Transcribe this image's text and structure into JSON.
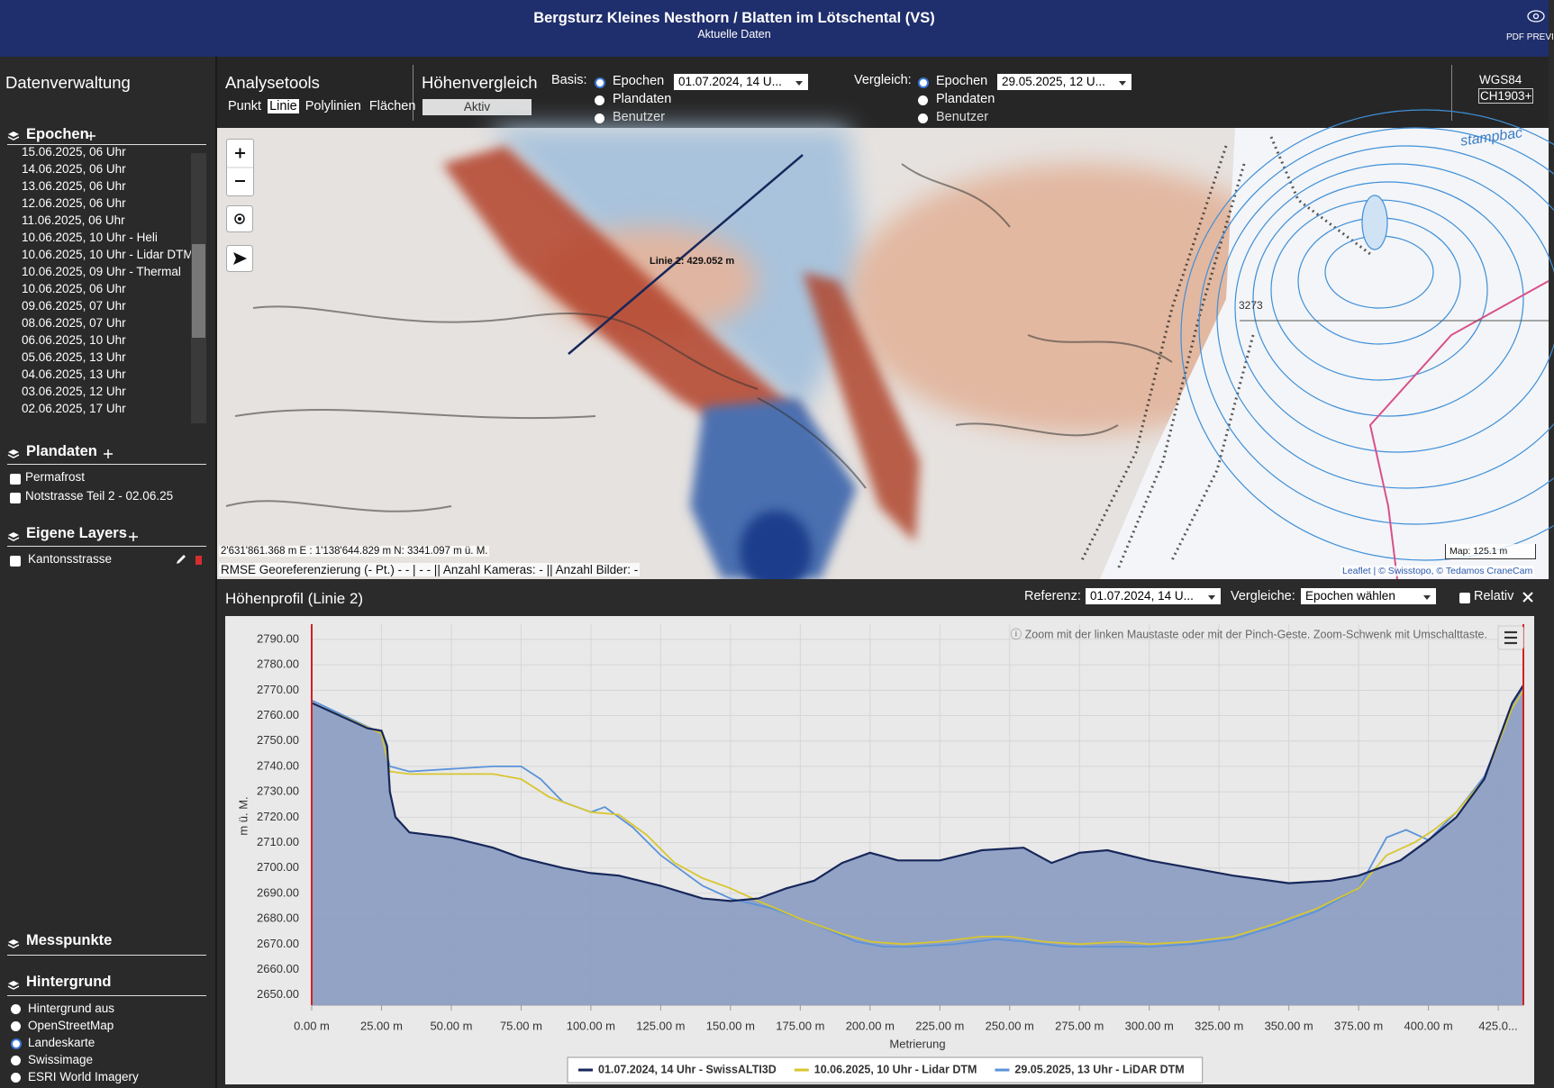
{
  "header": {
    "title": "Bergsturz Kleines Nesthorn / Blatten im Lötschental (VS)",
    "subtitle": "Aktuelle Daten",
    "pdf": "PDF PREVI"
  },
  "sidebar": {
    "title": "Datenverwaltung",
    "epochen": {
      "label": "Epochen",
      "items": [
        "15.06.2025, 06 Uhr",
        "14.06.2025, 06 Uhr",
        "13.06.2025, 06 Uhr",
        "12.06.2025, 06 Uhr",
        "11.06.2025, 06 Uhr",
        "10.06.2025, 10 Uhr - Heli",
        "10.06.2025, 10 Uhr - Lidar DTM",
        "10.06.2025, 09 Uhr - Thermal",
        "10.06.2025, 06 Uhr",
        "09.06.2025, 07 Uhr",
        "08.06.2025, 07 Uhr",
        "06.06.2025, 10 Uhr",
        "05.06.2025, 13 Uhr",
        "04.06.2025, 13 Uhr",
        "03.06.2025, 12 Uhr",
        "02.06.2025, 17 Uhr"
      ]
    },
    "plandaten": {
      "label": "Plandaten",
      "items": [
        "Permafrost",
        "Notstrasse Teil 2 - 02.06.25"
      ]
    },
    "eigene_layers": {
      "label": "Eigene Layers",
      "items": [
        "Kantonsstrasse"
      ]
    },
    "messpunkte": {
      "label": "Messpunkte"
    },
    "hintergrund": {
      "label": "Hintergrund",
      "items": [
        "Hintergrund aus",
        "OpenStreetMap",
        "Landeskarte",
        "Swissimage",
        "ESRI World Imagery"
      ],
      "selected": 2
    }
  },
  "toolbar": {
    "analysetools": {
      "title": "Analysetools",
      "tools": [
        "Punkt",
        "Linie",
        "Polylinien",
        "Flächen"
      ],
      "active": 1
    },
    "hoehenvergleich": {
      "title": "Höhenvergleich",
      "button": "Aktiv"
    },
    "basis": {
      "label": "Basis:",
      "options": [
        "Epochen",
        "Plandaten",
        "Benutzer"
      ],
      "selected": 0,
      "select": "01.07.2024, 14 U..."
    },
    "vergleich": {
      "label": "Vergleich:",
      "options": [
        "Epochen",
        "Plandaten",
        "Benutzer"
      ],
      "selected": 0,
      "select": "29.05.2025, 12 U..."
    },
    "crs": [
      "WGS84",
      "CH1903+"
    ]
  },
  "map": {
    "line_label": "Linie 2: 429.052 m",
    "coords": "2'631'861.368 m E : 1'138'644.829 m N: 3341.097 m ü. M.",
    "rmse": "RMSE Georeferenzierung (- Pt.) - - | - - || Anzahl Kameras: - || Anzahl Bilder: -",
    "scale": "Map: 125.1 m",
    "attribution": "Leaflet | © Swisstopo, © Tedamos CraneCam",
    "contour_label": "3273",
    "place_label": "stampbac"
  },
  "profile": {
    "title": "Höhenprofil (Linie 2)",
    "referenz_label": "Referenz:",
    "referenz": "01.07.2024, 14 U...",
    "vergleiche_label": "Vergleiche:",
    "vergleiche": "Epochen wählen",
    "relativ": "Relativ"
  },
  "chart_data": {
    "type": "line",
    "note": "ⓘ Zoom mit der linken Maustaste oder mit der Pinch-Geste. Zoom-Schwenk mit Umschalttaste.",
    "xlabel": "Metrierung",
    "ylabel": "m ü. M.",
    "xlim": [
      0,
      434
    ],
    "ylim": [
      2646,
      2796
    ],
    "grid": true,
    "xticks": [
      {
        "value": 0,
        "label": "0.00 m"
      },
      {
        "value": 25,
        "label": "25.00 m"
      },
      {
        "value": 50,
        "label": "50.00 m"
      },
      {
        "value": 75,
        "label": "75.00 m"
      },
      {
        "value": 100,
        "label": "100.00 m"
      },
      {
        "value": 125,
        "label": "125.00 m"
      },
      {
        "value": 150,
        "label": "150.00 m"
      },
      {
        "value": 175,
        "label": "175.00 m"
      },
      {
        "value": 200,
        "label": "200.00 m"
      },
      {
        "value": 225,
        "label": "225.00 m"
      },
      {
        "value": 250,
        "label": "250.00 m"
      },
      {
        "value": 275,
        "label": "275.00 m"
      },
      {
        "value": 300,
        "label": "300.00 m"
      },
      {
        "value": 325,
        "label": "325.00 m"
      },
      {
        "value": 350,
        "label": "350.00 m"
      },
      {
        "value": 375,
        "label": "375.00 m"
      },
      {
        "value": 400,
        "label": "400.00 m"
      },
      {
        "value": 425,
        "label": "425.0..."
      }
    ],
    "yticks": [
      {
        "value": 2650,
        "label": "2650.00"
      },
      {
        "value": 2660,
        "label": "2660.00"
      },
      {
        "value": 2670,
        "label": "2670.00"
      },
      {
        "value": 2680,
        "label": "2680.00"
      },
      {
        "value": 2690,
        "label": "2690.00"
      },
      {
        "value": 2700,
        "label": "2700.00"
      },
      {
        "value": 2710,
        "label": "2710.00"
      },
      {
        "value": 2720,
        "label": "2720.00"
      },
      {
        "value": 2730,
        "label": "2730.00"
      },
      {
        "value": 2740,
        "label": "2740.00"
      },
      {
        "value": 2750,
        "label": "2750.00"
      },
      {
        "value": 2760,
        "label": "2760.00"
      },
      {
        "value": 2770,
        "label": "2770.00"
      },
      {
        "value": 2780,
        "label": "2780.00"
      },
      {
        "value": 2790,
        "label": "2790.00"
      }
    ],
    "series": [
      {
        "name": "01.07.2024, 14 Uhr - SwissALTI3D",
        "color": "#17275a",
        "fill": "#8d9fc3",
        "x": [
          0,
          10,
          20,
          25,
          27,
          28,
          30,
          35,
          50,
          65,
          75,
          90,
          100,
          110,
          125,
          140,
          150,
          160,
          170,
          180,
          190,
          200,
          210,
          225,
          240,
          255,
          265,
          275,
          285,
          300,
          315,
          330,
          350,
          365,
          375,
          390,
          400,
          410,
          420,
          430,
          434
        ],
        "values": [
          2765,
          2760,
          2755,
          2754,
          2748,
          2730,
          2720,
          2714,
          2712,
          2708,
          2704,
          2700,
          2698,
          2697,
          2693,
          2688,
          2687,
          2688,
          2692,
          2695,
          2702,
          2706,
          2703,
          2703,
          2707,
          2708,
          2702,
          2706,
          2707,
          2703,
          2700,
          2697,
          2694,
          2695,
          2697,
          2703,
          2711,
          2720,
          2735,
          2765,
          2772
        ]
      },
      {
        "name": "10.06.2025, 10 Uhr - Lidar DTM",
        "color": "#d8c631",
        "x": [
          0,
          25,
          28,
          35,
          50,
          65,
          75,
          85,
          100,
          110,
          120,
          130,
          140,
          150,
          160,
          175,
          190,
          200,
          212,
          225,
          240,
          250,
          262,
          275,
          290,
          300,
          315,
          330,
          345,
          360,
          375,
          385,
          395,
          402,
          410,
          420,
          430,
          434
        ],
        "values": [
          2765,
          2753,
          2738,
          2737,
          2737,
          2737,
          2735,
          2728,
          2722,
          2721,
          2713,
          2702,
          2696,
          2692,
          2687,
          2680,
          2674,
          2671,
          2670,
          2671,
          2673,
          2673,
          2671,
          2670,
          2671,
          2670,
          2671,
          2673,
          2678,
          2684,
          2692,
          2705,
          2710,
          2715,
          2722,
          2735,
          2763,
          2770
        ]
      },
      {
        "name": "29.05.2025, 13 Uhr - LiDAR DTM",
        "color": "#5b93d9",
        "x": [
          0,
          25,
          28,
          35,
          50,
          65,
          75,
          82,
          90,
          100,
          105,
          115,
          125,
          140,
          150,
          165,
          180,
          195,
          205,
          215,
          230,
          245,
          255,
          270,
          285,
          300,
          315,
          330,
          345,
          360,
          375,
          385,
          392,
          400,
          410,
          420,
          430,
          434
        ],
        "values": [
          2766,
          2753,
          2740,
          2738,
          2739,
          2740,
          2740,
          2735,
          2726,
          2722,
          2724,
          2716,
          2705,
          2693,
          2688,
          2684,
          2678,
          2671,
          2669,
          2669,
          2670,
          2672,
          2671,
          2669,
          2669,
          2669,
          2670,
          2672,
          2677,
          2683,
          2692,
          2712,
          2715,
          2711,
          2722,
          2736,
          2763,
          2771
        ]
      }
    ]
  }
}
